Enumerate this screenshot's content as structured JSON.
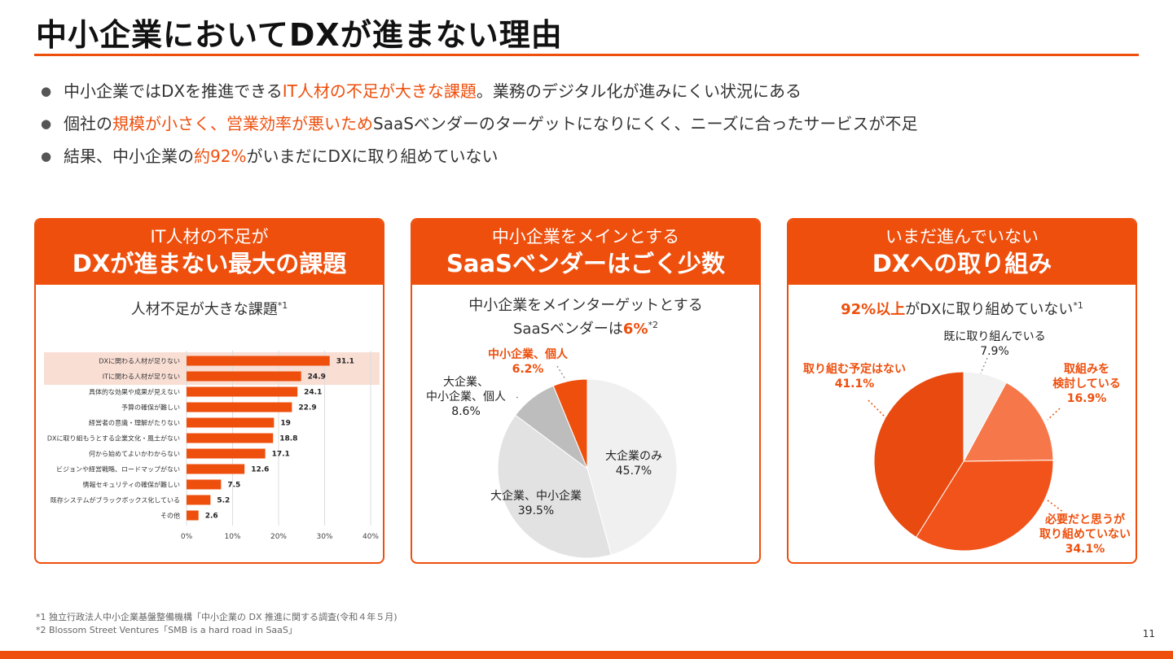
{
  "header": {
    "title": "中小企業においてDXが進まない理由"
  },
  "bullets": [
    {
      "before": "中小企業ではDXを推進できる",
      "highlight": "IT人材の不足が大きな課題",
      "after": "。業務のデジタル化が進みにくい状況にある"
    },
    {
      "before": "個社の",
      "highlight": "規模が小さく、営業効率が悪いため",
      "after": "SaaSベンダーのターゲットになりにくく、ニーズに合ったサービスが不足"
    },
    {
      "before": "結果、中小企業の",
      "highlight": "約92%",
      "after": "がいまだにDXに取り組めていない"
    }
  ],
  "cards": [
    {
      "head_line1": "IT人材の不足が",
      "head_line2": "DXが進まない最大の課題",
      "subtitle": "人材不足が大きな課題",
      "subtitle_note": "*1"
    },
    {
      "head_line1": "中小企業をメインとする",
      "head_line2": "SaaSベンダーはごく少数",
      "subtitle_line1": "中小企業をメインターゲットとする",
      "subtitle_line2_before": "SaaSベンダーは",
      "subtitle_line2_highlight": "6%",
      "subtitle_note": "*2"
    },
    {
      "head_line1": "いまだ進んでいない",
      "head_line2": "DXへの取り組み",
      "subtitle_highlight": "92%以上",
      "subtitle_after": "がDXに取り組めていない",
      "subtitle_note": "*1"
    }
  ],
  "chart_data": [
    {
      "type": "bar",
      "orientation": "horizontal",
      "title": "人材不足が大きな課題",
      "categories": [
        "DXに関わる人材が足りない",
        "ITに関わる人材が足りない",
        "具体的な効果や成果が見えない",
        "予算の確保が難しい",
        "経営者の意識・理解がたりない",
        "DXに取り組もうとする企業文化・風土がない",
        "何から始めてよいかわからない",
        "ビジョンや経営戦略、ロードマップがない",
        "情報セキュリティの確保が難しい",
        "既存システムがブラックボックス化している",
        "その他"
      ],
      "values": [
        31.1,
        24.9,
        24.1,
        22.9,
        19,
        18.8,
        17.1,
        12.6,
        7.5,
        5.2,
        2.6
      ],
      "value_labels": [
        "31.1",
        "24.9",
        "24.1",
        "22.9",
        "19",
        "18.8",
        "17.1",
        "12.6",
        "7.5",
        "5.2",
        "2.6"
      ],
      "highlighted_categories": [
        0,
        1
      ],
      "xlim": [
        0,
        40
      ],
      "ticks": [
        0,
        10,
        20,
        30,
        40
      ],
      "tick_labels": [
        "0%",
        "10%",
        "20%",
        "30%",
        "40%"
      ],
      "grid": true,
      "bar_color": "#ee4f0d",
      "highlight_color": "#f9ded4"
    },
    {
      "type": "pie",
      "title": "中小企業をメインターゲットとするSaaSベンダーは6%",
      "slices": [
        {
          "label": "大企業のみ",
          "value": 45.7,
          "display": "45.7%",
          "color": "#f0f0f0"
        },
        {
          "label": "大企業、中小企業",
          "value": 39.5,
          "display": "39.5%",
          "color": "#e2e2e2"
        },
        {
          "label": "大企業、中小企業、個人",
          "value": 8.6,
          "display": "8.6%",
          "color": "#bdbdbd"
        },
        {
          "label": "中小企業、個人",
          "value": 6.2,
          "display": "6.2%",
          "color": "#ee4f0d"
        }
      ]
    },
    {
      "type": "pie",
      "title": "92%以上がDXに取り組めていない",
      "slices": [
        {
          "label": "既に取り組んでいる",
          "value": 7.9,
          "display": "7.9%",
          "color": "#f2f2f2"
        },
        {
          "label": "取組みを検討している",
          "value": 16.9,
          "display": "16.9%",
          "color": "#f6784a"
        },
        {
          "label": "必要だと思うが取り組めていない",
          "value": 34.1,
          "display": "34.1%",
          "color": "#f2531a"
        },
        {
          "label": "取り組む予定はない",
          "value": 41.1,
          "display": "41.1%",
          "color": "#e84a10"
        }
      ]
    }
  ],
  "footnotes": [
    "*1 独立行政法人中小企業基盤整備機構「中小企業の DX 推進に関する調査(令和４年５月)",
    "*2 Blossom Street Ventures「SMB is a hard road in SaaS」"
  ],
  "page_number": "11",
  "colors": {
    "accent": "#ee4f0d"
  }
}
